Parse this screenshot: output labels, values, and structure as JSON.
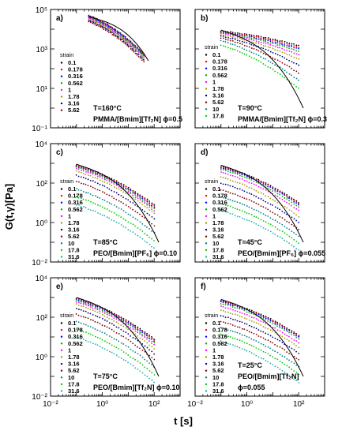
{
  "figure": {
    "ylabel": "G(t,γ)[Pa]",
    "xlabel": "t [s]"
  },
  "chart_data": [
    {
      "type": "scatter",
      "panel_label": "a)",
      "log_x": true,
      "log_y": true,
      "xlim": [
        0.01,
        1000
      ],
      "ylim": [
        0.1,
        100000
      ],
      "x_tick_labels": [],
      "y_tick_labels": [
        "10⁻¹",
        "10¹",
        "10³",
        "10⁵"
      ],
      "y_tick_values": [
        0.1,
        10,
        1000,
        100000
      ],
      "legend_title": "strain",
      "annotations": [
        "T=160°C",
        "PMMA/[Bmim][Tf₂N] ϕ=0.5"
      ],
      "x_range": [
        0.3,
        40
      ],
      "series": [
        {
          "name": "0.1",
          "color": "#000000",
          "y_start": 50000,
          "y_end": 560
        },
        {
          "name": "0.178",
          "color": "#ff0000",
          "y_start": 47000,
          "y_end": 520
        },
        {
          "name": "0.316",
          "color": "#0000ff",
          "y_start": 44000,
          "y_end": 480
        },
        {
          "name": "0.562",
          "color": "#00aa00",
          "y_start": 40000,
          "y_end": 430
        },
        {
          "name": "1",
          "color": "#ff00ff",
          "y_start": 36000,
          "y_end": 380
        },
        {
          "name": "1.78",
          "color": "#a0a000",
          "y_start": 32000,
          "y_end": 330
        },
        {
          "name": "3.16",
          "color": "#000080",
          "y_start": 28000,
          "y_end": 280
        },
        {
          "name": "5.62",
          "color": "#800000",
          "y_start": 24000,
          "y_end": 230
        }
      ],
      "fit_lines": [
        {
          "y_start": 42000,
          "y_end": 250,
          "x_end": 60
        }
      ]
    },
    {
      "type": "scatter",
      "panel_label": "b)",
      "log_x": true,
      "log_y": true,
      "xlim": [
        0.01,
        1000
      ],
      "ylim": [
        0.1,
        100000
      ],
      "x_tick_labels": [],
      "y_tick_labels": [],
      "y_tick_values": [],
      "legend_title": "strain",
      "annotations": [
        "T=90°C",
        "PMMA/[Bmim][Tf₂N] ϕ=0.3"
      ],
      "x_range": [
        0.1,
        100
      ],
      "series": [
        {
          "name": "0.1",
          "color": "#000000",
          "y_start": 8000,
          "y_end": 1500
        },
        {
          "name": "0.178",
          "color": "#ff0000",
          "y_start": 7500,
          "y_end": 1200
        },
        {
          "name": "0.316",
          "color": "#0000ff",
          "y_start": 7000,
          "y_end": 1000
        },
        {
          "name": "0.562",
          "color": "#00aa00",
          "y_start": 6500,
          "y_end": 750
        },
        {
          "name": "1",
          "color": "#ff00ff",
          "y_start": 6000,
          "y_end": 500
        },
        {
          "name": "1.78",
          "color": "#a0a000",
          "y_start": 5200,
          "y_end": 300
        },
        {
          "name": "3.16",
          "color": "#000080",
          "y_start": 4500,
          "y_end": 150
        },
        {
          "name": "5.62",
          "color": "#800000",
          "y_start": 3600,
          "y_end": 60
        },
        {
          "name": "10",
          "color": "#008080",
          "y_start": 2600,
          "y_end": 25
        },
        {
          "name": "17.8",
          "color": "#00cc00",
          "y_start": 1600,
          "y_end": 10
        }
      ],
      "fit_lines": [
        {
          "y_start": 9000,
          "y_end": 1,
          "x_end": 150
        }
      ]
    },
    {
      "type": "scatter",
      "panel_label": "c)",
      "log_x": true,
      "log_y": true,
      "xlim": [
        0.01,
        1000
      ],
      "ylim": [
        0.01,
        10000
      ],
      "x_tick_labels": [],
      "y_tick_labels": [
        "10⁻²",
        "10⁰",
        "10²",
        "10⁴"
      ],
      "y_tick_values": [
        0.01,
        1,
        100,
        10000
      ],
      "legend_title": "strain",
      "annotations": [
        "T=85°C",
        "PEO/[Bmim][PF₆] ϕ=0.10"
      ],
      "x_range": [
        0.1,
        100
      ],
      "series": [
        {
          "name": "0.1",
          "color": "#000000",
          "y_start": 800,
          "y_end": 8
        },
        {
          "name": "0.178",
          "color": "#ff0000",
          "y_start": 750,
          "y_end": 7
        },
        {
          "name": "0.316",
          "color": "#0000ff",
          "y_start": 700,
          "y_end": 6
        },
        {
          "name": "0.562",
          "color": "#00aa00",
          "y_start": 650,
          "y_end": 5
        },
        {
          "name": "1",
          "color": "#ff00ff",
          "y_start": 550,
          "y_end": 4
        },
        {
          "name": "1.78",
          "color": "#a0a000",
          "y_start": 400,
          "y_end": 3
        },
        {
          "name": "3.16",
          "color": "#000080",
          "y_start": 250,
          "y_end": 1.5
        },
        {
          "name": "5.62",
          "color": "#800000",
          "y_start": 120,
          "y_end": 0.7
        },
        {
          "name": "10",
          "color": "#008080",
          "y_start": 50,
          "y_end": 0.3
        },
        {
          "name": "17.8",
          "color": "#00cc00",
          "y_start": 20,
          "y_end": 0.12
        },
        {
          "name": "31.6",
          "color": "#20b2aa",
          "y_start": 8,
          "y_end": 0.05
        }
      ],
      "fit_lines": [
        {
          "y_start": 900,
          "y_end": 0.1,
          "x_end": 150
        }
      ]
    },
    {
      "type": "scatter",
      "panel_label": "d)",
      "log_x": true,
      "log_y": true,
      "xlim": [
        0.01,
        1000
      ],
      "ylim": [
        0.01,
        10000
      ],
      "x_tick_labels": [],
      "y_tick_labels": [],
      "y_tick_values": [],
      "legend_title": "strain",
      "annotations": [
        "T=45°C",
        "PEO/[Bmim][PF₆] ϕ=0.055"
      ],
      "x_range": [
        0.1,
        100
      ],
      "series": [
        {
          "name": "0.1",
          "color": "#000000",
          "y_start": 700,
          "y_end": 10
        },
        {
          "name": "0.178",
          "color": "#ff0000",
          "y_start": 650,
          "y_end": 9
        },
        {
          "name": "0.316",
          "color": "#0000ff",
          "y_start": 600,
          "y_end": 8
        },
        {
          "name": "0.562",
          "color": "#00aa00",
          "y_start": 500,
          "y_end": 6
        },
        {
          "name": "1",
          "color": "#ff00ff",
          "y_start": 350,
          "y_end": 4
        },
        {
          "name": "1.78",
          "color": "#a0a000",
          "y_start": 200,
          "y_end": 2
        },
        {
          "name": "3.16",
          "color": "#000080",
          "y_start": 100,
          "y_end": 1
        },
        {
          "name": "5.62",
          "color": "#800000",
          "y_start": 45,
          "y_end": 0.45
        },
        {
          "name": "10",
          "color": "#008080",
          "y_start": 20,
          "y_end": 0.2
        },
        {
          "name": "17.8",
          "color": "#00cc00",
          "y_start": 9,
          "y_end": 0.09
        },
        {
          "name": "31.6",
          "color": "#20b2aa",
          "y_start": 4,
          "y_end": 0.04
        }
      ],
      "fit_lines": [
        {
          "y_start": 800,
          "y_end": 0.1,
          "x_end": 150
        }
      ]
    },
    {
      "type": "scatter",
      "panel_label": "e)",
      "log_x": true,
      "log_y": true,
      "xlim": [
        0.01,
        1000
      ],
      "ylim": [
        0.01,
        10000
      ],
      "x_tick_labels": [
        "10⁻²",
        "10⁰",
        "10²"
      ],
      "x_tick_values": [
        0.01,
        1,
        100
      ],
      "y_tick_labels": [
        "10⁻²",
        "10⁰",
        "10²",
        "10⁴"
      ],
      "y_tick_values": [
        0.01,
        1,
        100,
        10000
      ],
      "legend_title": "strain",
      "annotations": [
        "T=75°C",
        "PEO/[Bmim][Tf₂N] ϕ=0.10"
      ],
      "x_range": [
        0.1,
        100
      ],
      "series": [
        {
          "name": "0.1",
          "color": "#000000",
          "y_start": 900,
          "y_end": 8
        },
        {
          "name": "0.178",
          "color": "#ff0000",
          "y_start": 850,
          "y_end": 7
        },
        {
          "name": "0.316",
          "color": "#0000ff",
          "y_start": 800,
          "y_end": 6
        },
        {
          "name": "0.562",
          "color": "#00aa00",
          "y_start": 700,
          "y_end": 5
        },
        {
          "name": "1",
          "color": "#ff00ff",
          "y_start": 600,
          "y_end": 4
        },
        {
          "name": "1.78",
          "color": "#a0a000",
          "y_start": 450,
          "y_end": 2.5
        },
        {
          "name": "3.16",
          "color": "#000080",
          "y_start": 280,
          "y_end": 1.4
        },
        {
          "name": "5.62",
          "color": "#800000",
          "y_start": 140,
          "y_end": 0.7
        },
        {
          "name": "10",
          "color": "#008080",
          "y_start": 60,
          "y_end": 0.3
        },
        {
          "name": "17.8",
          "color": "#00cc00",
          "y_start": 25,
          "y_end": 0.12
        },
        {
          "name": "31.6",
          "color": "#20b2aa",
          "y_start": 10,
          "y_end": 0.05
        }
      ],
      "fit_lines": [
        {
          "y_start": 1000,
          "y_end": 0.1,
          "x_end": 150
        }
      ]
    },
    {
      "type": "scatter",
      "panel_label": "f)",
      "log_x": true,
      "log_y": true,
      "xlim": [
        0.01,
        1000
      ],
      "ylim": [
        0.01,
        10000
      ],
      "x_tick_labels": [
        "10⁻²",
        "10⁰",
        "10²"
      ],
      "x_tick_values": [
        0.01,
        1,
        100
      ],
      "y_tick_labels": [],
      "y_tick_values": [],
      "legend_title": "strain",
      "annotations": [
        "T=25°C",
        "PEO/[Bmim][Tf₂N]",
        "ϕ=0.055"
      ],
      "x_range": [
        0.1,
        100
      ],
      "series": [
        {
          "name": "0.1",
          "color": "#000000",
          "y_start": 700,
          "y_end": 12
        },
        {
          "name": "0.178",
          "color": "#ff0000",
          "y_start": 650,
          "y_end": 11
        },
        {
          "name": "0.316",
          "color": "#0000ff",
          "y_start": 600,
          "y_end": 10
        },
        {
          "name": "0.562",
          "color": "#00aa00",
          "y_start": 500,
          "y_end": 8
        },
        {
          "name": "1",
          "color": "#ff00ff",
          "y_start": 350,
          "y_end": 5
        },
        {
          "name": "1.78",
          "color": "#a0a000",
          "y_start": 220,
          "y_end": 3
        },
        {
          "name": "3.16",
          "color": "#000080",
          "y_start": 120,
          "y_end": 1.5
        },
        {
          "name": "5.62",
          "color": "#800000",
          "y_start": 60,
          "y_end": 0.7
        },
        {
          "name": "10",
          "color": "#008080",
          "y_start": 30,
          "y_end": 0.3
        },
        {
          "name": "17.8",
          "color": "#00cc00",
          "y_start": 14,
          "y_end": 0.13
        },
        {
          "name": "31.6",
          "color": "#20b2aa",
          "y_start": 6,
          "y_end": 0.05
        }
      ],
      "fit_lines": [
        {
          "y_start": 800,
          "y_end": 0.1,
          "x_end": 150
        }
      ]
    }
  ]
}
